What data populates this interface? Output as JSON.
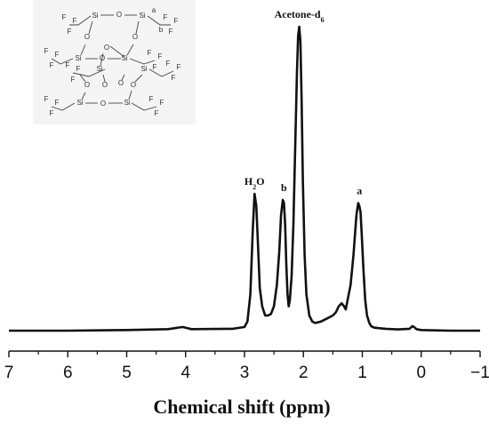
{
  "chart_data": {
    "type": "line",
    "xlabel": "Chemical shift (ppm)",
    "ylabel": "",
    "title": "",
    "xlim": [
      7,
      -1
    ],
    "x_reversed": true,
    "x_ticks": [
      7,
      6,
      5,
      4,
      3,
      2,
      1,
      0,
      -1
    ],
    "x_tick_labels": [
      "7",
      "6",
      "5",
      "4",
      "3",
      "2",
      "1",
      "0",
      "−1"
    ],
    "ylim": [
      0,
      1.0
    ],
    "grid": false,
    "series": [
      {
        "x": [
          7.0,
          6.0,
          5.0,
          4.3,
          4.05,
          3.9,
          3.2,
          3.0,
          2.95,
          2.9,
          2.86,
          2.83,
          2.8,
          2.77,
          2.74,
          2.7,
          2.65,
          2.6,
          2.55,
          2.5,
          2.45,
          2.41,
          2.38,
          2.35,
          2.33,
          2.31,
          2.29,
          2.27,
          2.25,
          2.23,
          2.2,
          2.17,
          2.14,
          2.11,
          2.09,
          2.07,
          2.05,
          2.03,
          2.01,
          1.98,
          1.95,
          1.9,
          1.85,
          1.8,
          1.7,
          1.6,
          1.5,
          1.45,
          1.4,
          1.35,
          1.31,
          1.28,
          1.25,
          1.2,
          1.15,
          1.1,
          1.07,
          1.05,
          1.03,
          1.01,
          0.98,
          0.95,
          0.92,
          0.88,
          0.85,
          0.8,
          0.7,
          0.6,
          0.4,
          0.2,
          0.15,
          0.12,
          0.08,
          0.0,
          -0.5,
          -1.0
        ],
        "y": [
          0.0,
          0.0,
          0.002,
          0.005,
          0.012,
          0.005,
          0.006,
          0.012,
          0.03,
          0.12,
          0.33,
          0.45,
          0.41,
          0.28,
          0.14,
          0.08,
          0.05,
          0.05,
          0.055,
          0.08,
          0.15,
          0.26,
          0.38,
          0.43,
          0.42,
          0.35,
          0.22,
          0.12,
          0.08,
          0.1,
          0.18,
          0.35,
          0.6,
          0.85,
          0.97,
          1.0,
          0.95,
          0.75,
          0.5,
          0.25,
          0.12,
          0.05,
          0.03,
          0.025,
          0.03,
          0.04,
          0.05,
          0.06,
          0.08,
          0.09,
          0.08,
          0.07,
          0.1,
          0.15,
          0.25,
          0.38,
          0.42,
          0.41,
          0.39,
          0.32,
          0.2,
          0.1,
          0.05,
          0.025,
          0.015,
          0.01,
          0.008,
          0.006,
          0.004,
          0.006,
          0.015,
          0.012,
          0.005,
          0.002,
          0.0,
          0.0
        ]
      }
    ],
    "annotations": [
      {
        "text_main": "H",
        "text_sub": "2",
        "text_rest": "O",
        "x": 2.83,
        "y": 0.45
      },
      {
        "text_main": "b",
        "x": 2.33,
        "y": 0.43
      },
      {
        "text_main": "Acetone-d",
        "text_sub": "6",
        "x": 2.07,
        "y": 1.0
      },
      {
        "text_main": "a",
        "x": 1.05,
        "y": 0.42
      }
    ]
  },
  "structure": {
    "si_label": "Si",
    "o_label": "O",
    "f_label": "F",
    "label_a": "a",
    "label_b": "b"
  }
}
